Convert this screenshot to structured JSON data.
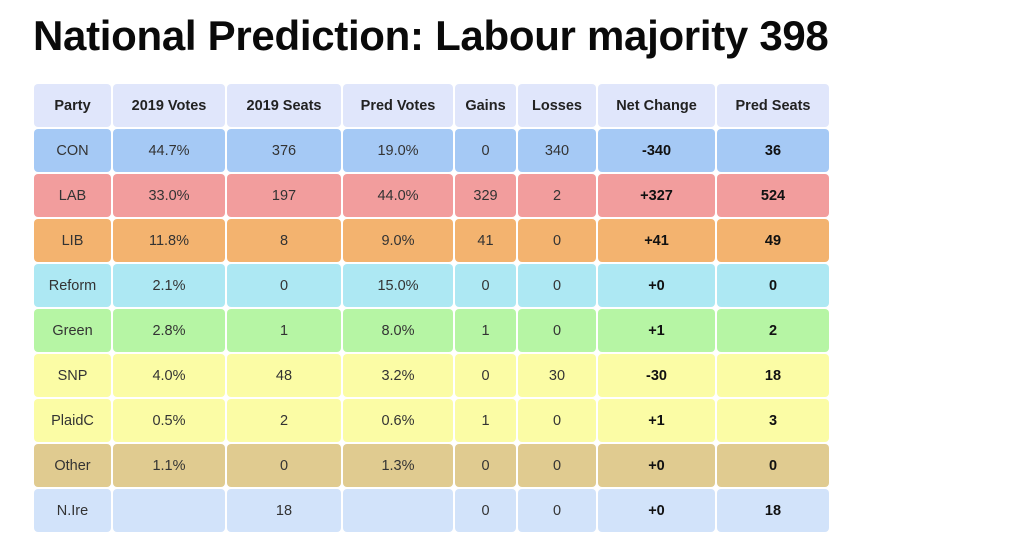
{
  "title": "National Prediction: Labour majority 398",
  "columns": [
    "Party",
    "2019 Votes",
    "2019 Seats",
    "Pred Votes",
    "Gains",
    "Losses",
    "Net Change",
    "Pred Seats"
  ],
  "colors": {
    "header": "#e0e6fb",
    "CON": "#a5c9f5",
    "LAB": "#f29d9d",
    "LIB": "#f3b36f",
    "Reform": "#ade8f3",
    "Green": "#b6f5a4",
    "SNP": "#fbfca5",
    "PlaidC": "#fbfca5",
    "Other": "#e0cb90",
    "N.Ire": "#d2e3fa"
  },
  "rows": [
    [
      "CON",
      "44.7%",
      "376",
      "19.0%",
      "0",
      "340",
      "-340",
      "36"
    ],
    [
      "LAB",
      "33.0%",
      "197",
      "44.0%",
      "329",
      "2",
      "+327",
      "524"
    ],
    [
      "LIB",
      "11.8%",
      "8",
      "9.0%",
      "41",
      "0",
      "+41",
      "49"
    ],
    [
      "Reform",
      "2.1%",
      "0",
      "15.0%",
      "0",
      "0",
      "+0",
      "0"
    ],
    [
      "Green",
      "2.8%",
      "1",
      "8.0%",
      "1",
      "0",
      "+1",
      "2"
    ],
    [
      "SNP",
      "4.0%",
      "48",
      "3.2%",
      "0",
      "30",
      "-30",
      "18"
    ],
    [
      "PlaidC",
      "0.5%",
      "2",
      "0.6%",
      "1",
      "0",
      "+1",
      "3"
    ],
    [
      "Other",
      "1.1%",
      "0",
      "1.3%",
      "0",
      "0",
      "+0",
      "0"
    ],
    [
      "N.Ire",
      "",
      "18",
      "",
      "0",
      "0",
      "+0",
      "18"
    ]
  ]
}
